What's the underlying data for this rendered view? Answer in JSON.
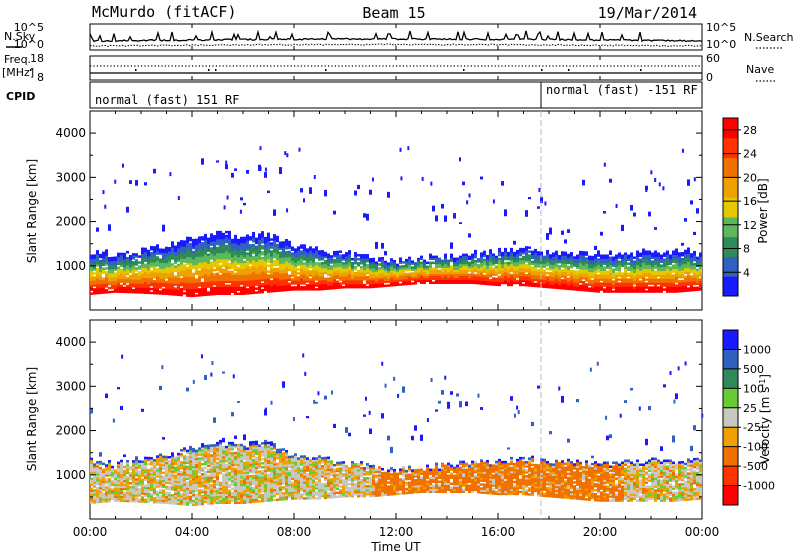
{
  "header": {
    "station": "McMurdo (fitACF)",
    "beam": "Beam 15",
    "date": "19/Mar/2014"
  },
  "noise_panel": {
    "left_label": "N.Sky",
    "right_label": "N.Search",
    "left_ticks": [
      "10^5",
      "10^0"
    ],
    "right_ticks": [
      "10^5",
      "10^0"
    ]
  },
  "freq_panel": {
    "left_label_1": "Freq.",
    "left_label_2": "[MHz]",
    "right_label": "Nave",
    "left_ticks": [
      "18",
      "8"
    ],
    "right_ticks": [
      "60",
      "0"
    ]
  },
  "cpid": {
    "label": "CPID",
    "programs": [
      "normal (fast) 151 RF",
      "normal (fast) -151 RF"
    ]
  },
  "time_axis": {
    "label": "Time UT",
    "ticks": [
      "00:00",
      "04:00",
      "08:00",
      "12:00",
      "16:00",
      "20:00",
      "00:00"
    ]
  },
  "colors": {
    "power_scale": [
      "#1a1aff",
      "#3060c0",
      "#2e8b57",
      "#5cb85c",
      "#e6c800",
      "#f0a000",
      "#f07000",
      "#ff3300",
      "#ff0000"
    ],
    "velocity_scale": [
      "#1a1aff",
      "#3060c0",
      "#2e8b57",
      "#66cc33",
      "#c8c8c0",
      "#f0a000",
      "#f07000",
      "#ff3300",
      "#ff0000"
    ]
  },
  "chart_data": [
    {
      "type": "heatmap",
      "panel": "power",
      "ylabel": "Slant Range [km]",
      "y_ticks": [
        "1000",
        "2000",
        "3000",
        "4000"
      ],
      "ylim": [
        0,
        4500
      ],
      "x": [
        0,
        1,
        2,
        3,
        4,
        5,
        6,
        7,
        8,
        9,
        10,
        11,
        12,
        13,
        14,
        15,
        16,
        17,
        18,
        19,
        20,
        21,
        22,
        23,
        24
      ],
      "scatter_bottom_km": [
        350,
        400,
        380,
        350,
        300,
        350,
        350,
        400,
        450,
        450,
        500,
        500,
        550,
        600,
        600,
        600,
        550,
        550,
        500,
        450,
        400,
        400,
        400,
        400,
        450
      ],
      "scatter_top_km": [
        1300,
        1250,
        1350,
        1450,
        1600,
        1750,
        1650,
        1700,
        1450,
        1350,
        1250,
        1200,
        1100,
        1150,
        1200,
        1250,
        1300,
        1350,
        1300,
        1250,
        1250,
        1250,
        1300,
        1300,
        1300
      ],
      "colorbar": {
        "label": "Power [dB]",
        "ticks": [
          "4",
          "8",
          "12",
          "16",
          "20",
          "24",
          "28"
        ],
        "range": [
          0,
          30
        ]
      }
    },
    {
      "type": "heatmap",
      "panel": "velocity",
      "ylabel": "Slant Range [km]",
      "y_ticks": [
        "1000",
        "2000",
        "3000",
        "4000"
      ],
      "ylim": [
        0,
        4500
      ],
      "x": [
        0,
        1,
        2,
        3,
        4,
        5,
        6,
        7,
        8,
        9,
        10,
        11,
        12,
        13,
        14,
        15,
        16,
        17,
        18,
        19,
        20,
        21,
        22,
        23,
        24
      ],
      "colorbar": {
        "label": "Velocity [m s^-1]",
        "ticks": [
          "1000",
          "500",
          "100",
          "25",
          "-25",
          "-100",
          "-500",
          "-1000"
        ]
      }
    }
  ]
}
